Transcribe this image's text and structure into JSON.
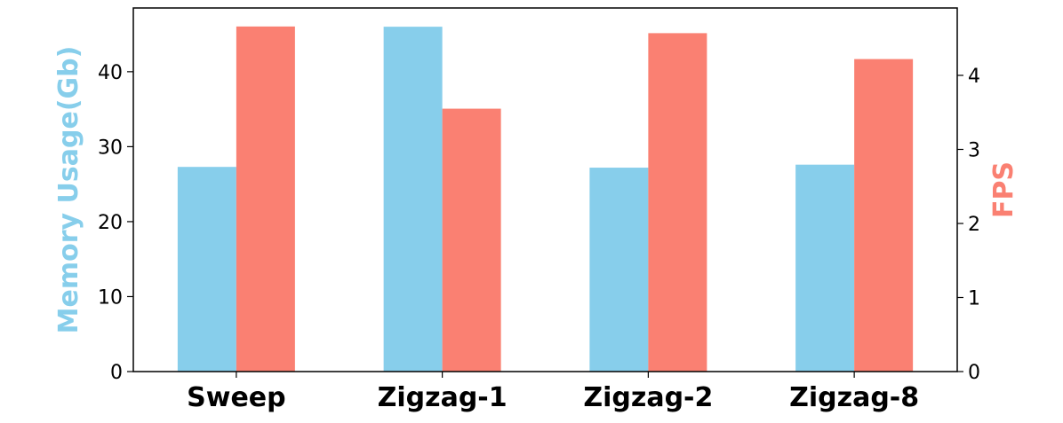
{
  "chart_data": {
    "type": "bar",
    "categories": [
      "Sweep",
      "Zigzag-1",
      "Zigzag-2",
      "Zigzag-8"
    ],
    "series": [
      {
        "axis": "left",
        "color": "#87CEEB",
        "values": [
          27.3,
          46.0,
          27.2,
          27.6
        ]
      },
      {
        "axis": "right",
        "color": "#FA8072",
        "values": [
          4.66,
          3.55,
          4.57,
          4.22
        ]
      }
    ],
    "ylabel_left": "Memory Usage(Gb)",
    "ylabel_right": "FPS",
    "ylim_left": [
      0,
      48.5
    ],
    "ylim_right": [
      0,
      4.91
    ],
    "yticks_left": [
      0,
      10,
      20,
      30,
      40
    ],
    "yticks_right": [
      0,
      1,
      2,
      3,
      4
    ],
    "grid": false,
    "legend": "none"
  }
}
